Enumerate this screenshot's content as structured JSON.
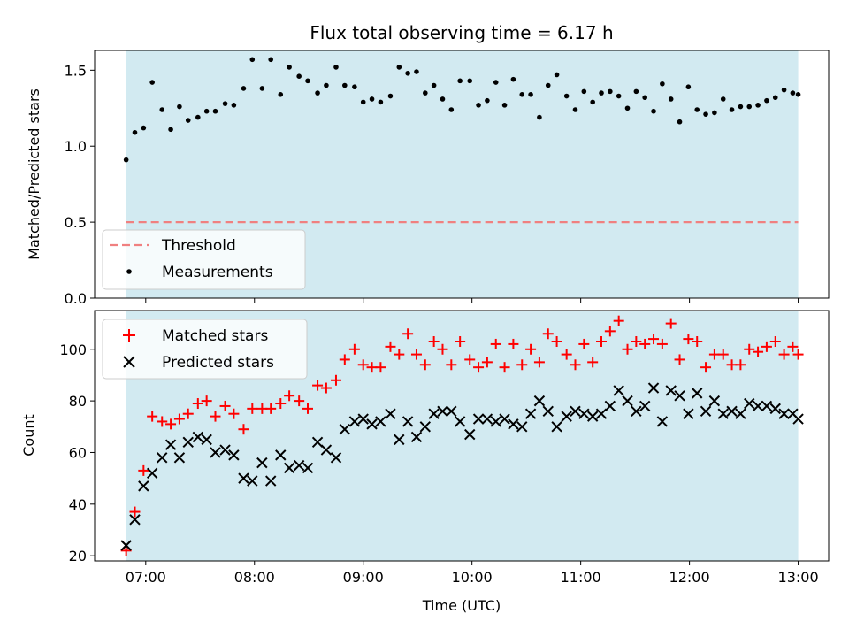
{
  "chart_data": [
    {
      "type": "scatter",
      "title": "Flux total observing time = 6.17 h",
      "xlabel": "",
      "ylabel": "Matched/Predicted stars",
      "x_unit": "hours UTC",
      "xlim": [
        6.53,
        13.28
      ],
      "ylim": [
        0.0,
        1.63
      ],
      "yticks": [
        0.0,
        0.5,
        1.0,
        1.5
      ],
      "ytick_labels": [
        "0.0",
        "0.5",
        "1.0",
        "1.5"
      ],
      "xticks": [
        7,
        8,
        9,
        10,
        11,
        12,
        13
      ],
      "shaded_span": [
        6.82,
        13.0
      ],
      "shade_color": "#add8e6",
      "grid": false,
      "legend_position": "lower-left",
      "legend": [
        "Threshold",
        "Measurements"
      ],
      "series": [
        {
          "name": "Threshold",
          "kind": "dashed-line",
          "color": "#f08080",
          "x": [
            6.82,
            13.0
          ],
          "y": [
            0.5,
            0.5
          ]
        },
        {
          "name": "Measurements",
          "kind": "dot",
          "color": "#000000",
          "x": [
            6.82,
            6.9,
            6.98,
            7.06,
            7.15,
            7.23,
            7.31,
            7.39,
            7.48,
            7.56,
            7.64,
            7.73,
            7.81,
            7.9,
            7.98,
            8.07,
            8.15,
            8.24,
            8.32,
            8.41,
            8.49,
            8.58,
            8.66,
            8.75,
            8.83,
            8.92,
            9.0,
            9.08,
            9.16,
            9.25,
            9.33,
            9.41,
            9.49,
            9.57,
            9.65,
            9.73,
            9.81,
            9.89,
            9.98,
            10.06,
            10.14,
            10.22,
            10.3,
            10.38,
            10.46,
            10.54,
            10.62,
            10.7,
            10.78,
            10.87,
            10.95,
            11.03,
            11.11,
            11.19,
            11.27,
            11.35,
            11.43,
            11.51,
            11.59,
            11.67,
            11.75,
            11.83,
            11.91,
            11.99,
            12.07,
            12.15,
            12.23,
            12.31,
            12.39,
            12.47,
            12.55,
            12.63,
            12.71,
            12.79,
            12.87,
            12.95,
            13.0
          ],
          "y": [
            0.91,
            1.09,
            1.12,
            1.42,
            1.24,
            1.11,
            1.26,
            1.17,
            1.19,
            1.23,
            1.23,
            1.28,
            1.27,
            1.38,
            1.57,
            1.38,
            1.57,
            1.34,
            1.52,
            1.46,
            1.43,
            1.35,
            1.4,
            1.52,
            1.4,
            1.39,
            1.29,
            1.31,
            1.29,
            1.33,
            1.52,
            1.48,
            1.49,
            1.35,
            1.4,
            1.31,
            1.24,
            1.43,
            1.43,
            1.27,
            1.3,
            1.42,
            1.27,
            1.44,
            1.34,
            1.34,
            1.19,
            1.4,
            1.47,
            1.33,
            1.24,
            1.36,
            1.29,
            1.35,
            1.36,
            1.33,
            1.25,
            1.36,
            1.32,
            1.23,
            1.41,
            1.31,
            1.16,
            1.39,
            1.24,
            1.21,
            1.22,
            1.31,
            1.24,
            1.26,
            1.26,
            1.27,
            1.3,
            1.32,
            1.37,
            1.35,
            1.34
          ]
        }
      ]
    },
    {
      "type": "scatter",
      "title": "",
      "xlabel": "Time (UTC)",
      "ylabel": "Count",
      "x_unit": "hours UTC",
      "xlim": [
        6.53,
        13.28
      ],
      "ylim": [
        18,
        115
      ],
      "yticks": [
        20,
        40,
        60,
        80,
        100
      ],
      "ytick_labels": [
        "20",
        "40",
        "60",
        "80",
        "100"
      ],
      "xticks": [
        7,
        8,
        9,
        10,
        11,
        12,
        13
      ],
      "xtick_labels": [
        "07:00",
        "08:00",
        "09:00",
        "10:00",
        "11:00",
        "12:00",
        "13:00"
      ],
      "shaded_span": [
        6.82,
        13.0
      ],
      "shade_color": "#add8e6",
      "grid": false,
      "legend_position": "top-left",
      "legend": [
        "Matched stars",
        "Predicted stars"
      ],
      "series": [
        {
          "name": "Matched stars",
          "kind": "plus",
          "color": "#ff0000",
          "x": [
            6.82,
            6.9,
            6.98,
            7.06,
            7.15,
            7.23,
            7.31,
            7.39,
            7.48,
            7.56,
            7.64,
            7.73,
            7.81,
            7.9,
            7.98,
            8.07,
            8.15,
            8.24,
            8.32,
            8.41,
            8.49,
            8.58,
            8.66,
            8.75,
            8.83,
            8.92,
            9.0,
            9.08,
            9.16,
            9.25,
            9.33,
            9.41,
            9.49,
            9.57,
            9.65,
            9.73,
            9.81,
            9.89,
            9.98,
            10.06,
            10.14,
            10.22,
            10.3,
            10.38,
            10.46,
            10.54,
            10.62,
            10.7,
            10.78,
            10.87,
            10.95,
            11.03,
            11.11,
            11.19,
            11.27,
            11.35,
            11.43,
            11.51,
            11.59,
            11.67,
            11.75,
            11.83,
            11.91,
            11.99,
            12.07,
            12.15,
            12.23,
            12.31,
            12.39,
            12.47,
            12.55,
            12.63,
            12.71,
            12.79,
            12.87,
            12.95,
            13.0
          ],
          "y": [
            22,
            37,
            53,
            74,
            72,
            71,
            73,
            75,
            79,
            80,
            74,
            78,
            75,
            69,
            77,
            77,
            77,
            79,
            82,
            80,
            77,
            86,
            85,
            88,
            96,
            100,
            94,
            93,
            93,
            101,
            98,
            106,
            98,
            94,
            103,
            100,
            94,
            103,
            96,
            93,
            95,
            102,
            93,
            102,
            94,
            100,
            95,
            106,
            103,
            98,
            94,
            102,
            95,
            103,
            107,
            111,
            100,
            103,
            102,
            104,
            102,
            110,
            96,
            104,
            103,
            93,
            98,
            98,
            94,
            94,
            100,
            99,
            101,
            103,
            98,
            101,
            98
          ]
        },
        {
          "name": "Predicted stars",
          "kind": "x",
          "color": "#000000",
          "x": [
            6.82,
            6.9,
            6.98,
            7.06,
            7.15,
            7.23,
            7.31,
            7.39,
            7.48,
            7.56,
            7.64,
            7.73,
            7.81,
            7.9,
            7.98,
            8.07,
            8.15,
            8.24,
            8.32,
            8.41,
            8.49,
            8.58,
            8.66,
            8.75,
            8.83,
            8.92,
            9.0,
            9.08,
            9.16,
            9.25,
            9.33,
            9.41,
            9.49,
            9.57,
            9.65,
            9.73,
            9.81,
            9.89,
            9.98,
            10.06,
            10.14,
            10.22,
            10.3,
            10.38,
            10.46,
            10.54,
            10.62,
            10.7,
            10.78,
            10.87,
            10.95,
            11.03,
            11.11,
            11.19,
            11.27,
            11.35,
            11.43,
            11.51,
            11.59,
            11.67,
            11.75,
            11.83,
            11.91,
            11.99,
            12.07,
            12.15,
            12.23,
            12.31,
            12.39,
            12.47,
            12.55,
            12.63,
            12.71,
            12.79,
            12.87,
            12.95,
            13.0
          ],
          "y": [
            24,
            34,
            47,
            52,
            58,
            63,
            58,
            64,
            66,
            65,
            60,
            61,
            59,
            50,
            49,
            56,
            49,
            59,
            54,
            55,
            54,
            64,
            61,
            58,
            69,
            72,
            73,
            71,
            72,
            75,
            65,
            72,
            66,
            70,
            75,
            76,
            76,
            72,
            67,
            73,
            73,
            72,
            73,
            71,
            70,
            75,
            80,
            76,
            70,
            74,
            76,
            75,
            74,
            75,
            78,
            84,
            80,
            76,
            78,
            85,
            72,
            84,
            82,
            75,
            83,
            76,
            80,
            75,
            76,
            75,
            79,
            78,
            78,
            77,
            75,
            75,
            73
          ]
        }
      ]
    }
  ]
}
